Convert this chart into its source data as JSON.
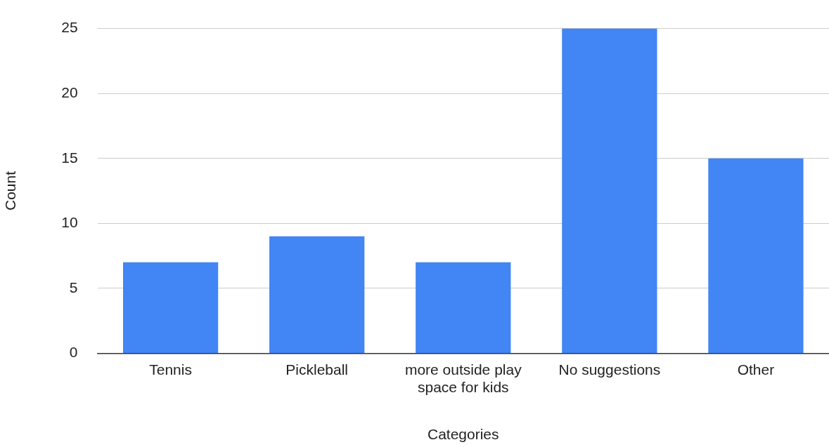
{
  "chart_data": {
    "type": "bar",
    "xlabel": "Categories",
    "ylabel": "Count",
    "categories": [
      "Tennis",
      "Pickleball",
      "more outside play space for kids",
      "No suggestions",
      "Other"
    ],
    "values": [
      7,
      9,
      7,
      25,
      15
    ],
    "color": "#4285f4",
    "ylim": [
      0,
      25
    ],
    "yticks": [
      0,
      5,
      10,
      15,
      20,
      25
    ],
    "grid": "y",
    "legend": false
  }
}
